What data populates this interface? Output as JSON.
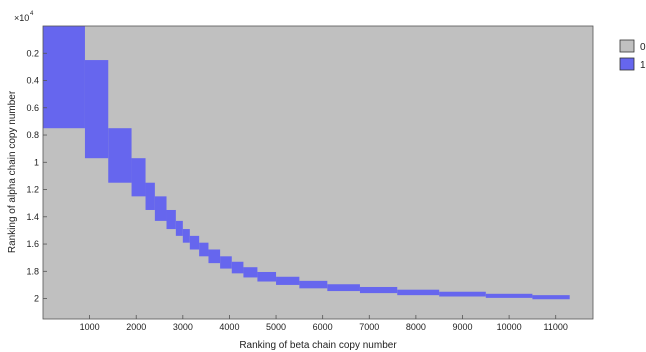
{
  "chart_data": {
    "type": "heatmap",
    "title": "",
    "xlabel": "Ranking of beta chain copy number",
    "ylabel": "Ranking of alpha chain copy number",
    "y_multiplier_label": "× 10^4",
    "xlim": [
      0,
      11800
    ],
    "ylim": [
      0,
      21500
    ],
    "y_reversed": true,
    "x_ticks": [
      1000,
      2000,
      3000,
      4000,
      5000,
      6000,
      7000,
      8000,
      9000,
      10000,
      11000
    ],
    "y_ticks": [
      2000,
      4000,
      6000,
      8000,
      10000,
      12000,
      14000,
      16000,
      18000,
      20000
    ],
    "y_tick_labels": [
      "0.2",
      "0.4",
      "0.6",
      "0.8",
      "1",
      "1.2",
      "1.4",
      "1.6",
      "1.8",
      "2"
    ],
    "grid": false,
    "legend": {
      "placement": "right",
      "entries": [
        {
          "label": "0",
          "color": "#c0c0c0"
        },
        {
          "label": "1",
          "color": "#6666ee"
        }
      ]
    },
    "background_value": 0,
    "cells_value_1": [
      {
        "x0": 0,
        "x1": 900,
        "y0": 0,
        "y1": 7500
      },
      {
        "x0": 900,
        "x1": 1400,
        "y0": 2500,
        "y1": 9700
      },
      {
        "x0": 1400,
        "x1": 1900,
        "y0": 7500,
        "y1": 11500
      },
      {
        "x0": 1900,
        "x1": 2200,
        "y0": 9700,
        "y1": 12500
      },
      {
        "x0": 2200,
        "x1": 2400,
        "y0": 11500,
        "y1": 13500
      },
      {
        "x0": 2400,
        "x1": 2650,
        "y0": 12500,
        "y1": 14300
      },
      {
        "x0": 2650,
        "x1": 2850,
        "y0": 13500,
        "y1": 14900
      },
      {
        "x0": 2850,
        "x1": 3000,
        "y0": 14300,
        "y1": 15400
      },
      {
        "x0": 3000,
        "x1": 3150,
        "y0": 14900,
        "y1": 15900
      },
      {
        "x0": 3150,
        "x1": 3350,
        "y0": 15400,
        "y1": 16400
      },
      {
        "x0": 3350,
        "x1": 3550,
        "y0": 15900,
        "y1": 16900
      },
      {
        "x0": 3550,
        "x1": 3800,
        "y0": 16400,
        "y1": 17400
      },
      {
        "x0": 3800,
        "x1": 4050,
        "y0": 16900,
        "y1": 17800
      },
      {
        "x0": 4050,
        "x1": 4300,
        "y0": 17300,
        "y1": 18150
      },
      {
        "x0": 4300,
        "x1": 4600,
        "y0": 17700,
        "y1": 18450
      },
      {
        "x0": 4600,
        "x1": 5000,
        "y0": 18050,
        "y1": 18750
      },
      {
        "x0": 5000,
        "x1": 5500,
        "y0": 18400,
        "y1": 19000
      },
      {
        "x0": 5500,
        "x1": 6100,
        "y0": 18700,
        "y1": 19250
      },
      {
        "x0": 6100,
        "x1": 6800,
        "y0": 18950,
        "y1": 19450
      },
      {
        "x0": 6800,
        "x1": 7600,
        "y0": 19150,
        "y1": 19600
      },
      {
        "x0": 7600,
        "x1": 8500,
        "y0": 19350,
        "y1": 19750
      },
      {
        "x0": 8500,
        "x1": 9500,
        "y0": 19500,
        "y1": 19850
      },
      {
        "x0": 9500,
        "x1": 10500,
        "y0": 19650,
        "y1": 19950
      },
      {
        "x0": 10500,
        "x1": 11300,
        "y0": 19750,
        "y1": 20050
      }
    ]
  }
}
